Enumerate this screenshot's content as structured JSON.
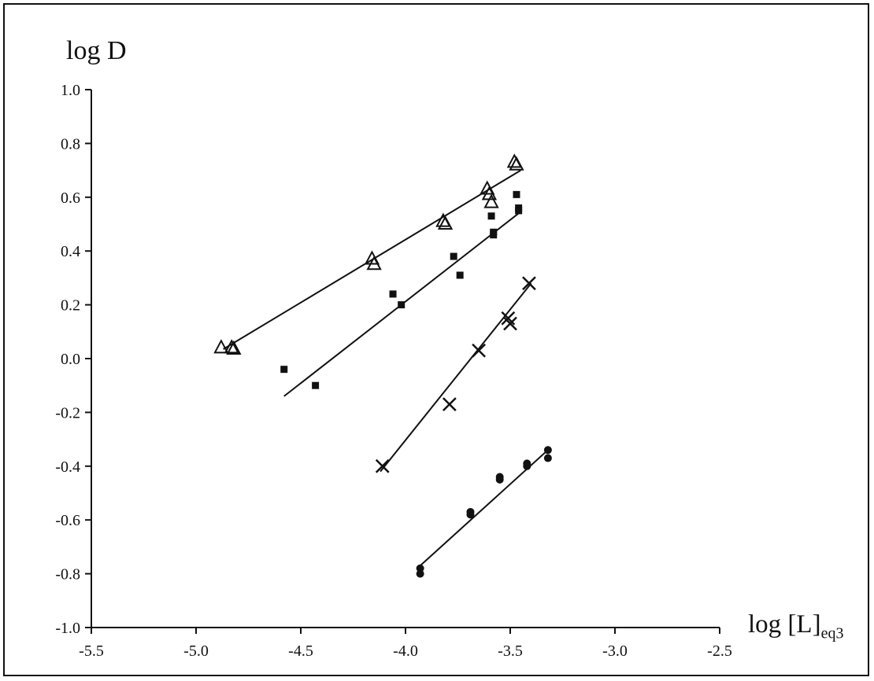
{
  "chart_data": {
    "type": "scatter",
    "title": "",
    "ylabel": "log D",
    "xlabel_main": "log [L]",
    "xlabel_sub": "eq3",
    "xlim": [
      -5.5,
      -2.5
    ],
    "ylim": [
      -1.0,
      1.0
    ],
    "x_ticks": [
      "-5.5",
      "-5.0",
      "-4.5",
      "-4.0",
      "-3.5",
      "-3.0",
      "-2.5"
    ],
    "y_ticks": [
      "1.0",
      "0.8",
      "0.6",
      "0.4",
      "0.2",
      "0.0",
      "-0.2",
      "-0.4",
      "-0.6",
      "-0.8",
      "-1.0"
    ],
    "grid": false,
    "series": [
      {
        "marker": "open-triangle",
        "points": [
          [
            -4.88,
            0.04
          ],
          [
            -4.83,
            0.04
          ],
          [
            -4.82,
            0.035
          ],
          [
            -4.16,
            0.37
          ],
          [
            -4.15,
            0.35
          ],
          [
            -3.82,
            0.51
          ],
          [
            -3.81,
            0.5
          ],
          [
            -3.61,
            0.63
          ],
          [
            -3.6,
            0.61
          ],
          [
            -3.59,
            0.58
          ],
          [
            -3.48,
            0.73
          ],
          [
            -3.47,
            0.72
          ]
        ],
        "fit": [
          [
            -4.87,
            0.035
          ],
          [
            -3.45,
            0.7
          ]
        ]
      },
      {
        "marker": "filled-square",
        "points": [
          [
            -4.58,
            -0.04
          ],
          [
            -4.43,
            -0.1
          ],
          [
            -4.06,
            0.24
          ],
          [
            -4.02,
            0.2
          ],
          [
            -3.77,
            0.38
          ],
          [
            -3.74,
            0.31
          ],
          [
            -3.59,
            0.53
          ],
          [
            -3.58,
            0.47
          ],
          [
            -3.58,
            0.46
          ],
          [
            -3.47,
            0.61
          ],
          [
            -3.46,
            0.56
          ],
          [
            -3.46,
            0.55
          ]
        ],
        "fit": [
          [
            -4.58,
            -0.14
          ],
          [
            -3.46,
            0.54
          ]
        ]
      },
      {
        "marker": "cross",
        "points": [
          [
            -4.11,
            -0.4
          ],
          [
            -3.79,
            -0.17
          ],
          [
            -3.65,
            0.03
          ],
          [
            -3.51,
            0.15
          ],
          [
            -3.5,
            0.13
          ],
          [
            -3.41,
            0.28
          ]
        ],
        "fit": [
          [
            -4.12,
            -0.42
          ],
          [
            -3.4,
            0.28
          ]
        ]
      },
      {
        "marker": "filled-circle",
        "points": [
          [
            -3.93,
            -0.78
          ],
          [
            -3.93,
            -0.8
          ],
          [
            -3.69,
            -0.57
          ],
          [
            -3.69,
            -0.58
          ],
          [
            -3.55,
            -0.44
          ],
          [
            -3.55,
            -0.45
          ],
          [
            -3.42,
            -0.39
          ],
          [
            -3.42,
            -0.4
          ],
          [
            -3.32,
            -0.34
          ],
          [
            -3.32,
            -0.37
          ]
        ],
        "fit": [
          [
            -3.93,
            -0.77
          ],
          [
            -3.32,
            -0.34
          ]
        ]
      }
    ]
  }
}
